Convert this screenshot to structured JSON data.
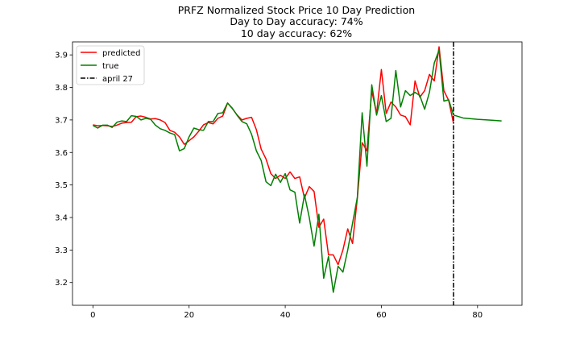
{
  "chart_data": {
    "type": "line",
    "title": [
      "PRFZ Normalized Stock Price 10 Day Prediction",
      "Day to Day accuracy: 74%",
      "10 day accuracy: 62%"
    ],
    "xlabel": "",
    "ylabel": "",
    "xlim": [
      -4.25,
      89.25
    ],
    "ylim": [
      3.13,
      3.94
    ],
    "xticks": [
      0,
      20,
      40,
      60,
      80
    ],
    "yticks": [
      3.2,
      3.3,
      3.4,
      3.5,
      3.6,
      3.7,
      3.8,
      3.9
    ],
    "grid": false,
    "legend_position": "upper-left",
    "series": [
      {
        "name": "predicted",
        "color": "#ff0000",
        "x": [
          0,
          1,
          2,
          3,
          4,
          5,
          6,
          7,
          8,
          9,
          10,
          11,
          12,
          13,
          14,
          15,
          16,
          17,
          18,
          19,
          20,
          21,
          22,
          23,
          24,
          25,
          26,
          27,
          28,
          29,
          30,
          31,
          32,
          33,
          34,
          35,
          36,
          37,
          38,
          39,
          40,
          41,
          42,
          43,
          44,
          45,
          46,
          47,
          48,
          49,
          50,
          51,
          52,
          53,
          54,
          55,
          56,
          57,
          58,
          59,
          60,
          61,
          62,
          63,
          64,
          65,
          66,
          67,
          68,
          69,
          70,
          71,
          72,
          73,
          74,
          75
        ],
        "y": [
          3.685,
          3.682,
          3.683,
          3.682,
          3.68,
          3.684,
          3.69,
          3.692,
          3.693,
          3.71,
          3.712,
          3.708,
          3.703,
          3.704,
          3.7,
          3.692,
          3.668,
          3.662,
          3.648,
          3.625,
          3.636,
          3.648,
          3.665,
          3.685,
          3.692,
          3.688,
          3.705,
          3.712,
          3.752,
          3.735,
          3.715,
          3.7,
          3.705,
          3.708,
          3.67,
          3.61,
          3.58,
          3.535,
          3.52,
          3.53,
          3.52,
          3.54,
          3.52,
          3.525,
          3.46,
          3.495,
          3.48,
          3.37,
          3.395,
          3.285,
          3.285,
          3.255,
          3.3,
          3.365,
          3.32,
          3.46,
          3.63,
          3.605,
          3.79,
          3.72,
          3.855,
          3.72,
          3.755,
          3.74,
          3.715,
          3.71,
          3.685,
          3.82,
          3.77,
          3.79,
          3.84,
          3.82,
          3.925,
          3.79,
          3.76,
          3.69
        ]
      },
      {
        "name": "true",
        "color": "#008000",
        "x": [
          0,
          1,
          2,
          3,
          4,
          5,
          6,
          7,
          8,
          9,
          10,
          11,
          12,
          13,
          14,
          15,
          16,
          17,
          18,
          19,
          20,
          21,
          22,
          23,
          24,
          25,
          26,
          27,
          28,
          29,
          30,
          31,
          32,
          33,
          34,
          35,
          36,
          37,
          38,
          39,
          40,
          41,
          42,
          43,
          44,
          45,
          46,
          47,
          48,
          49,
          50,
          51,
          52,
          53,
          54,
          55,
          56,
          57,
          58,
          59,
          60,
          61,
          62,
          63,
          64,
          65,
          66,
          67,
          68,
          69,
          70,
          71,
          72,
          73,
          74,
          75
        ],
        "y": [
          3.683,
          3.675,
          3.684,
          3.684,
          3.677,
          3.693,
          3.697,
          3.695,
          3.713,
          3.711,
          3.7,
          3.705,
          3.702,
          3.684,
          3.673,
          3.668,
          3.66,
          3.655,
          3.605,
          3.612,
          3.648,
          3.675,
          3.67,
          3.668,
          3.695,
          3.695,
          3.72,
          3.722,
          3.752,
          3.736,
          3.714,
          3.695,
          3.688,
          3.656,
          3.605,
          3.575,
          3.51,
          3.498,
          3.533,
          3.508,
          3.535,
          3.485,
          3.478,
          3.383,
          3.47,
          3.4,
          3.312,
          3.41,
          3.213,
          3.28,
          3.17,
          3.25,
          3.232,
          3.3,
          3.382,
          3.462,
          3.722,
          3.558,
          3.808,
          3.715,
          3.775,
          3.695,
          3.705,
          3.852,
          3.74,
          3.79,
          3.775,
          3.785,
          3.775,
          3.733,
          3.785,
          3.875,
          3.915,
          3.758,
          3.762,
          3.715
        ]
      },
      {
        "name": "",
        "color": "#008000",
        "x": [
          75,
          77,
          80,
          83,
          85
        ],
        "y": [
          3.715,
          3.706,
          3.702,
          3.699,
          3.697
        ]
      }
    ],
    "reference_lines": [
      {
        "name": "april 27",
        "x": 75,
        "color": "#000000",
        "style": "dash-dot"
      }
    ]
  }
}
